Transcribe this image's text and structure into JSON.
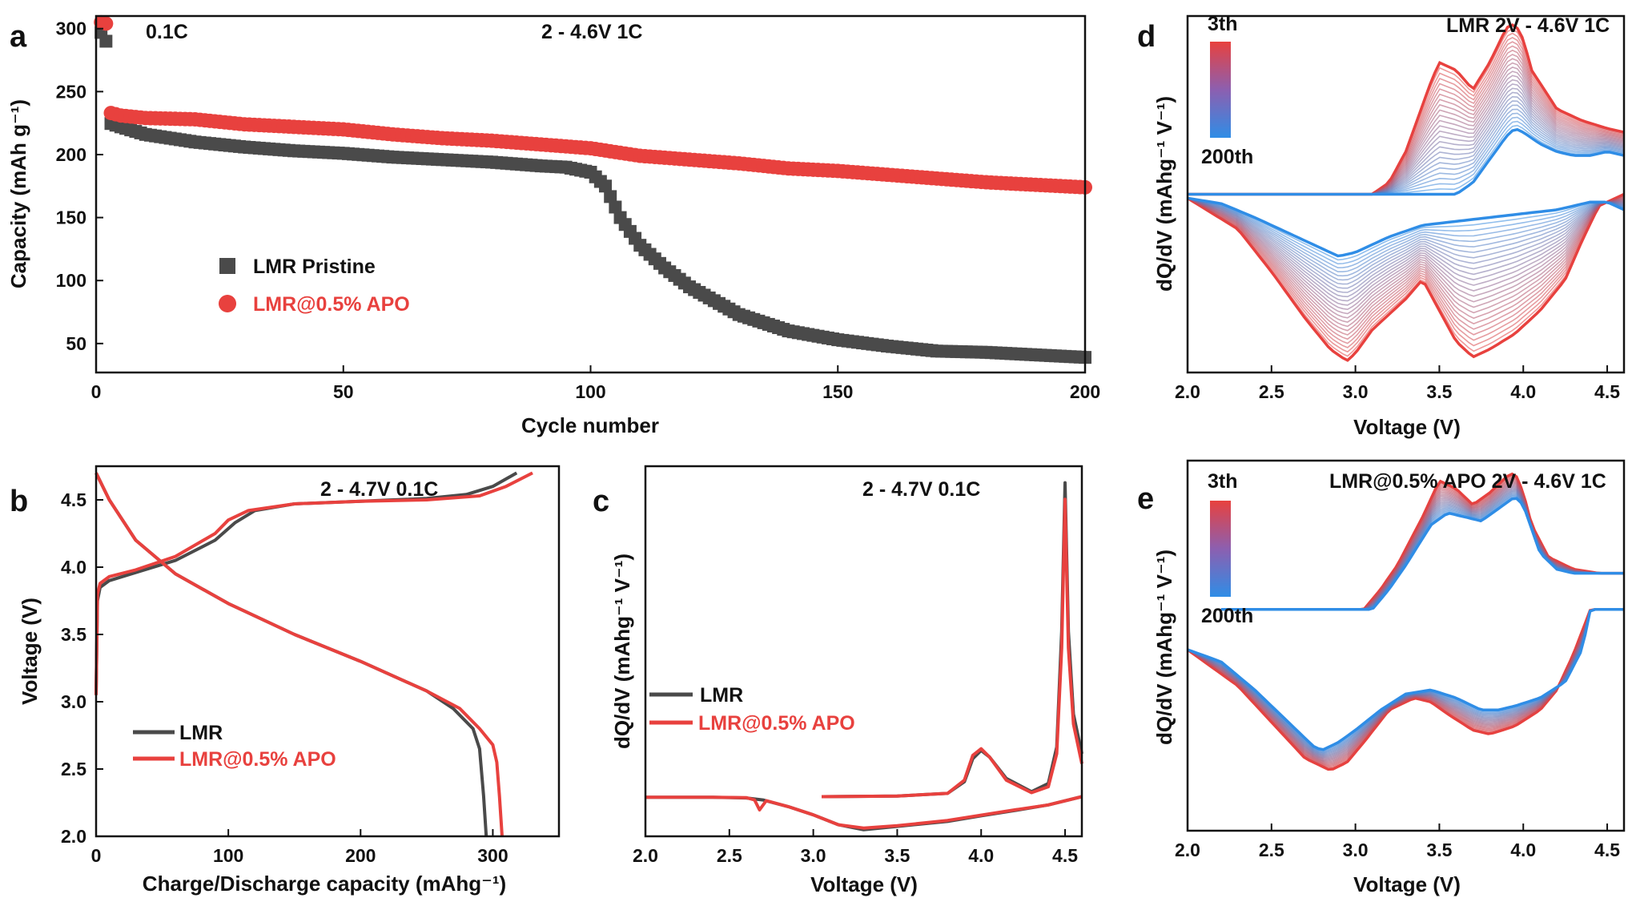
{
  "chart_data": [
    {
      "panel": "a",
      "type": "scatter",
      "xlabel": "Cycle number",
      "ylabel": "Capacity (mAh g⁻¹)",
      "xlim": [
        0,
        200
      ],
      "ylim": [
        27,
        310
      ],
      "xticks": [
        0,
        50,
        100,
        150,
        200
      ],
      "yticks": [
        50,
        100,
        150,
        200,
        250,
        300
      ],
      "annotations": [
        "0.1C",
        "2 - 4.6V 1C"
      ],
      "series": [
        {
          "name": "LMR Pristine",
          "color": "#4a4a4a",
          "marker": "square",
          "initial_points": [
            [
              1,
              297
            ],
            [
              2,
              290
            ]
          ],
          "x": [
            1,
            2,
            5,
            10,
            20,
            30,
            40,
            50,
            60,
            70,
            80,
            90,
            95,
            100,
            103,
            106,
            110,
            115,
            120,
            130,
            140,
            150,
            160,
            170,
            180,
            190,
            200
          ],
          "values": [
            228,
            226,
            222,
            216,
            210,
            206,
            203,
            201,
            198,
            196,
            194,
            191,
            190,
            186,
            175,
            150,
            128,
            110,
            95,
            73,
            60,
            53,
            48,
            44,
            43,
            41,
            39
          ]
        },
        {
          "name": "LMR@0.5% APO",
          "color": "#e8413e",
          "marker": "circle",
          "initial_points": [
            [
              1,
              305
            ],
            [
              2,
              304
            ]
          ],
          "x": [
            1,
            2,
            5,
            10,
            20,
            30,
            40,
            50,
            60,
            70,
            80,
            90,
            100,
            110,
            120,
            130,
            140,
            150,
            160,
            170,
            180,
            190,
            200
          ],
          "values": [
            236,
            234,
            231,
            229,
            228,
            224,
            222,
            220,
            216,
            213,
            211,
            208,
            205,
            199,
            196,
            193,
            189,
            187,
            184,
            181,
            178,
            176,
            174
          ]
        }
      ]
    },
    {
      "panel": "b",
      "type": "line",
      "xlabel": "Charge/Discharge capacity (mAhg⁻¹)",
      "ylabel": "Voltage (V)",
      "xlim": [
        0,
        350
      ],
      "ylim": [
        2.0,
        4.75
      ],
      "xticks": [
        0,
        100,
        200,
        300
      ],
      "yticks": [
        2.0,
        2.5,
        3.0,
        3.5,
        4.0,
        4.5
      ],
      "annotation": "2 - 4.7V 0.1C",
      "series": [
        {
          "name": "LMR",
          "color": "#4a4a4a",
          "charge": {
            "x": [
              0,
              1,
              3,
              10,
              30,
              60,
              90,
              105,
              120,
              150,
              200,
              250,
              280,
              300,
              318
            ],
            "y": [
              3.05,
              3.75,
              3.85,
              3.9,
              3.96,
              4.05,
              4.2,
              4.33,
              4.42,
              4.47,
              4.49,
              4.51,
              4.54,
              4.6,
              4.7
            ]
          },
          "discharge": {
            "x": [
              0,
              10,
              30,
              60,
              100,
              150,
              200,
              250,
              270,
              285,
              290,
              293,
              295
            ],
            "y": [
              4.7,
              4.5,
              4.2,
              3.95,
              3.73,
              3.5,
              3.3,
              3.08,
              2.95,
              2.8,
              2.65,
              2.3,
              2.0
            ]
          }
        },
        {
          "name": "LMR@0.5% APO",
          "color": "#e8413e",
          "charge": {
            "x": [
              0,
              1,
              3,
              10,
              30,
              60,
              90,
              100,
              115,
              150,
              200,
              250,
              290,
              310,
              330
            ],
            "y": [
              3.05,
              3.8,
              3.88,
              3.93,
              3.98,
              4.08,
              4.25,
              4.35,
              4.42,
              4.47,
              4.49,
              4.5,
              4.53,
              4.6,
              4.7
            ]
          },
          "discharge": {
            "x": [
              0,
              10,
              30,
              60,
              100,
              150,
              200,
              250,
              275,
              290,
              300,
              303,
              305,
              307
            ],
            "y": [
              4.7,
              4.5,
              4.2,
              3.95,
              3.73,
              3.5,
              3.3,
              3.08,
              2.95,
              2.8,
              2.68,
              2.55,
              2.3,
              2.0
            ]
          }
        }
      ]
    },
    {
      "panel": "c",
      "type": "line",
      "xlabel": "Voltage (V)",
      "ylabel": "dQ/dV (mAhg⁻¹ V⁻¹)",
      "xlim": [
        2.0,
        4.6
      ],
      "ylim": [
        -1.2,
        10.0
      ],
      "xticks": [
        2.0,
        2.5,
        3.0,
        3.5,
        4.0,
        4.5
      ],
      "annotation": "2 - 4.7V 0.1C",
      "series": [
        {
          "name": "LMR",
          "color": "#4a4a4a",
          "charge": {
            "x": [
              3.05,
              3.5,
              3.8,
              3.9,
              3.95,
              4.0,
              4.05,
              4.15,
              4.3,
              4.4,
              4.45,
              4.48,
              4.5,
              4.52,
              4.55,
              4.6
            ],
            "y": [
              0,
              0.02,
              0.1,
              0.45,
              1.15,
              1.4,
              1.2,
              0.55,
              0.15,
              0.4,
              1.5,
              5.0,
              9.5,
              5.0,
              2.5,
              1.3
            ]
          },
          "discharge": {
            "x": [
              4.6,
              4.4,
              4.2,
              4.0,
              3.8,
              3.5,
              3.3,
              3.15,
              3.0,
              2.85,
              2.7,
              2.6,
              2.4,
              2.0
            ],
            "y": [
              0,
              -0.25,
              -0.42,
              -0.58,
              -0.75,
              -0.9,
              -1.0,
              -0.85,
              -0.55,
              -0.3,
              -0.1,
              -0.04,
              -0.02,
              -0.02
            ]
          }
        },
        {
          "name": "LMR@0.5% APO",
          "color": "#e8413e",
          "charge": {
            "x": [
              3.05,
              3.5,
              3.8,
              3.9,
              3.95,
              4.0,
              4.05,
              4.15,
              4.3,
              4.4,
              4.45,
              4.48,
              4.5,
              4.52,
              4.55,
              4.6
            ],
            "y": [
              0,
              0.02,
              0.1,
              0.5,
              1.25,
              1.45,
              1.2,
              0.5,
              0.12,
              0.3,
              1.3,
              4.5,
              9.0,
              4.5,
              2.2,
              1.0
            ]
          },
          "discharge": {
            "x": [
              4.6,
              4.4,
              4.2,
              4.0,
              3.8,
              3.5,
              3.3,
              3.15,
              3.0,
              2.85,
              2.72,
              2.68,
              2.65,
              2.6,
              2.4,
              2.0
            ],
            "y": [
              0,
              -0.25,
              -0.4,
              -0.56,
              -0.72,
              -0.88,
              -0.95,
              -0.85,
              -0.55,
              -0.3,
              -0.12,
              -0.4,
              -0.1,
              -0.03,
              -0.02,
              -0.02
            ]
          }
        }
      ]
    },
    {
      "panel": "d",
      "type": "line",
      "xlabel": "Voltage (V)",
      "ylabel": "dQ/dV (mAhg⁻¹ V⁻¹)",
      "xlim": [
        2.0,
        4.6
      ],
      "ylim": [
        -2.3,
        2.3
      ],
      "xticks": [
        2.0,
        2.5,
        3.0,
        3.5,
        4.0,
        4.5
      ],
      "annotation": "LMR  2V - 4.6V  1C",
      "colorbar": {
        "top_label": "3th",
        "bottom_label": "200th",
        "top_color": "#e8413e",
        "bottom_color": "#2f8de6"
      },
      "series": [
        {
          "name": "3th",
          "color": "#e8413e",
          "charge": {
            "x": [
              2.0,
              3.1,
              3.2,
              3.3,
              3.45,
              3.5,
              3.6,
              3.7,
              3.8,
              3.9,
              3.95,
              4.0,
              4.05,
              4.2,
              4.35,
              4.5,
              4.6
            ],
            "y": [
              0,
              0,
              0.15,
              0.55,
              1.45,
              1.7,
              1.6,
              1.35,
              1.7,
              2.15,
              2.2,
              2.0,
              1.6,
              1.1,
              0.95,
              0.85,
              0.8
            ]
          },
          "discharge": {
            "x": [
              4.6,
              4.45,
              4.35,
              4.25,
              4.1,
              3.95,
              3.8,
              3.7,
              3.6,
              3.45,
              3.4,
              3.3,
              3.1,
              3.0,
              2.95,
              2.85,
              2.7,
              2.5,
              2.3,
              2.0
            ],
            "y": [
              0,
              -0.15,
              -0.6,
              -1.1,
              -1.5,
              -1.8,
              -2.0,
              -2.1,
              -1.9,
              -1.3,
              -1.1,
              -1.35,
              -1.75,
              -2.05,
              -2.15,
              -2.0,
              -1.6,
              -1.0,
              -0.45,
              -0.05
            ]
          }
        },
        {
          "name": "200th",
          "color": "#2f8de6",
          "charge": {
            "x": [
              2.0,
              3.6,
              3.7,
              3.8,
              3.9,
              3.95,
              4.0,
              4.1,
              4.2,
              4.3,
              4.4,
              4.5,
              4.6
            ],
            "y": [
              0,
              0,
              0.15,
              0.45,
              0.75,
              0.85,
              0.8,
              0.65,
              0.55,
              0.5,
              0.5,
              0.55,
              0.5
            ]
          },
          "discharge": {
            "x": [
              4.6,
              4.5,
              4.4,
              4.3,
              4.2,
              4.0,
              3.8,
              3.6,
              3.4,
              3.2,
              3.0,
              2.9,
              2.8,
              2.6,
              2.4,
              2.2,
              2.0
            ],
            "y": [
              -0.2,
              -0.1,
              -0.1,
              -0.15,
              -0.2,
              -0.25,
              -0.3,
              -0.35,
              -0.4,
              -0.55,
              -0.75,
              -0.8,
              -0.7,
              -0.5,
              -0.3,
              -0.12,
              -0.05
            ]
          }
        }
      ]
    },
    {
      "panel": "e",
      "type": "line",
      "xlabel": "Voltage (V)",
      "ylabel": "dQ/dV (mAhg⁻¹ V⁻¹)",
      "xlim": [
        2.0,
        4.6
      ],
      "ylim": [
        -2.3,
        2.3
      ],
      "xticks": [
        2.0,
        2.5,
        3.0,
        3.5,
        4.0,
        4.5
      ],
      "annotation": "LMR@0.5% APO  2V - 4.6V  1C",
      "colorbar": {
        "top_label": "3th",
        "bottom_label": "200th",
        "top_color": "#e8413e",
        "bottom_color": "#2f8de6"
      },
      "series": [
        {
          "name": "3th",
          "color": "#e8413e",
          "charge": {
            "x": [
              2.2,
              3.05,
              3.15,
              3.25,
              3.4,
              3.5,
              3.6,
              3.7,
              3.8,
              3.9,
              3.95,
              4.0,
              4.05,
              4.15,
              4.3,
              4.45,
              4.6
            ],
            "y": [
              0.45,
              0.45,
              0.7,
              1.0,
              1.6,
              2.05,
              1.95,
              1.75,
              1.9,
              2.1,
              2.15,
              1.9,
              1.5,
              1.1,
              0.95,
              0.9,
              0.9
            ]
          },
          "discharge": {
            "x": [
              4.6,
              4.4,
              4.3,
              4.2,
              4.1,
              3.95,
              3.8,
              3.7,
              3.55,
              3.45,
              3.35,
              3.2,
              3.05,
              2.95,
              2.85,
              2.7,
              2.5,
              2.3,
              2.0
            ],
            "y": [
              0.45,
              0.45,
              -0.1,
              -0.55,
              -0.8,
              -1.0,
              -1.1,
              -1.05,
              -0.85,
              -0.7,
              -0.65,
              -0.8,
              -1.2,
              -1.45,
              -1.55,
              -1.4,
              -0.95,
              -0.5,
              -0.05
            ]
          }
        },
        {
          "name": "200th",
          "color": "#2f8de6",
          "charge": {
            "x": [
              2.2,
              3.1,
              3.2,
              3.3,
              3.45,
              3.55,
              3.65,
              3.75,
              3.85,
              3.95,
              4.0,
              4.05,
              4.1,
              4.2,
              4.3,
              4.5,
              4.6
            ],
            "y": [
              0.45,
              0.45,
              0.7,
              1.0,
              1.5,
              1.65,
              1.6,
              1.55,
              1.7,
              1.85,
              1.75,
              1.45,
              1.15,
              0.95,
              0.9,
              0.9,
              0.9
            ]
          },
          "discharge": {
            "x": [
              4.6,
              4.4,
              4.35,
              4.25,
              4.1,
              3.95,
              3.85,
              3.75,
              3.6,
              3.45,
              3.3,
              3.15,
              3.0,
              2.9,
              2.8,
              2.75,
              2.6,
              2.4,
              2.2,
              2.0
            ],
            "y": [
              0.45,
              0.45,
              -0.05,
              -0.45,
              -0.65,
              -0.75,
              -0.8,
              -0.8,
              -0.65,
              -0.55,
              -0.6,
              -0.8,
              -1.05,
              -1.2,
              -1.3,
              -1.25,
              -0.95,
              -0.55,
              -0.2,
              -0.05
            ]
          }
        }
      ]
    }
  ]
}
